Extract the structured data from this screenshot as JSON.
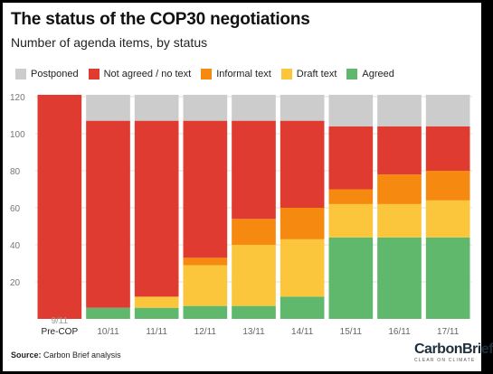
{
  "header": {
    "title": "The status of the COP30 negotiations",
    "subtitle": "Number of agenda items, by status"
  },
  "colors": {
    "Postponed": "#cccccc",
    "Not agreed / no text": "#df3b31",
    "Informal text": "#f6890f",
    "Draft text": "#fbc53c",
    "Agreed": "#5fb86b"
  },
  "chart_data": {
    "type": "bar",
    "stacked": true,
    "title": "The status of the COP30 negotiations",
    "subtitle": "Number of agenda items, by status",
    "categories": [
      "Pre-COP",
      "10/11",
      "11/11",
      "12/11",
      "13/11",
      "14/11",
      "15/11",
      "16/11",
      "17/11"
    ],
    "ylim": [
      0,
      120
    ],
    "yticks": [
      20,
      40,
      60,
      80,
      100,
      120
    ],
    "grid": true,
    "legend": "top",
    "series": [
      {
        "name": "Agreed",
        "values": [
          0,
          6,
          6,
          7,
          7,
          12,
          44,
          44,
          44
        ]
      },
      {
        "name": "Draft text",
        "values": [
          0,
          0,
          6,
          22,
          33,
          31,
          18,
          18,
          20
        ]
      },
      {
        "name": "Informal text",
        "values": [
          0,
          0,
          0,
          4,
          14,
          17,
          8,
          16,
          16
        ]
      },
      {
        "name": "Not agreed / no text",
        "values": [
          121,
          101,
          95,
          74,
          53,
          47,
          34,
          26,
          24
        ]
      },
      {
        "name": "Postponed",
        "values": [
          0,
          14,
          14,
          14,
          14,
          14,
          17,
          17,
          17
        ]
      }
    ],
    "legend_order": [
      "Postponed",
      "Not agreed / no text",
      "Informal text",
      "Draft text",
      "Agreed"
    ],
    "clipped_label": "9/11"
  },
  "footer": {
    "source_label": "Source:",
    "source_text": "Carbon Brief analysis",
    "logo_name": "CarbonBrief",
    "logo_tagline": "CLEAR ON CLIMATE"
  }
}
